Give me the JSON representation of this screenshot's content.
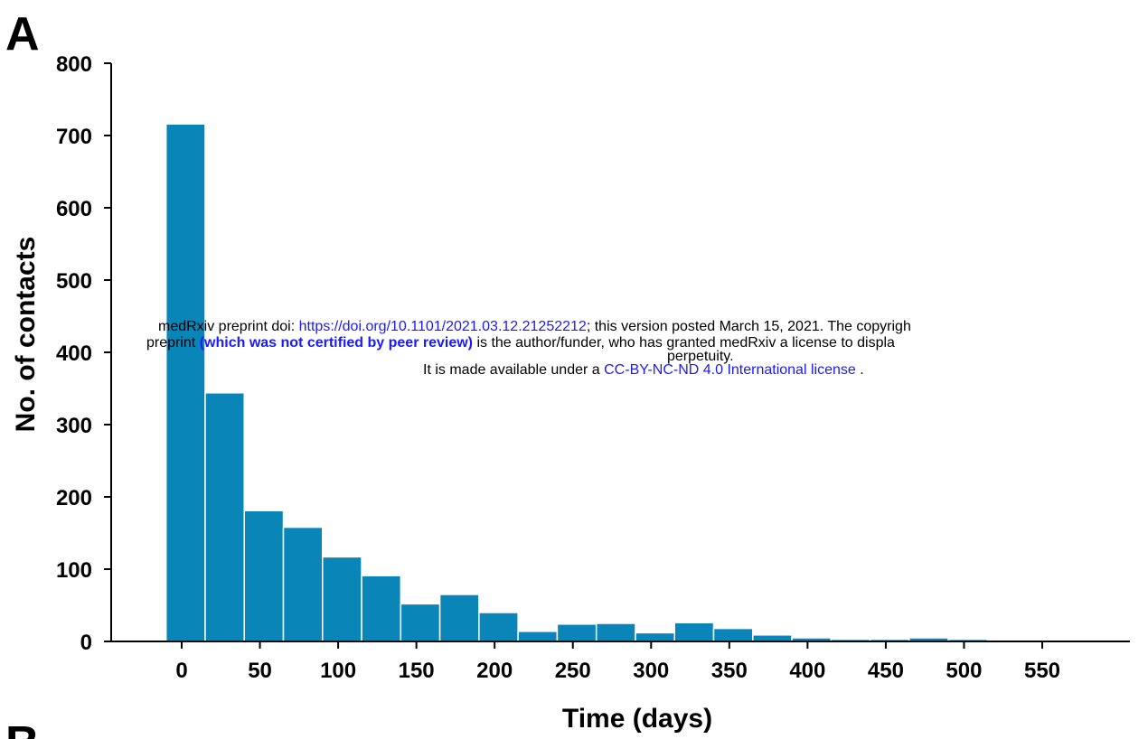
{
  "panel_letter": "A",
  "next_panel_letter": "B",
  "watermark": {
    "line1_prefix": "medRxiv preprint doi: ",
    "line1_link": "https://doi.org/10.1101/2021.03.12.21252212",
    "line1_suffix": "; this version posted March 15, 2021. The copyrigh",
    "line2_prefix": "preprint ",
    "line2_bold": "(which was not certified by peer review)",
    "line2_suffix": " is the author/funder, who has granted medRxiv a license to displa",
    "line3": "perpetuity.",
    "line4_prefix": "It is made available under a ",
    "line4_link": "CC-BY-NC-ND 4.0 International license",
    "line4_suffix": " ."
  },
  "chart_data": {
    "type": "bar",
    "title": "",
    "xlabel": "Time (days)",
    "ylabel": "No. of contacts",
    "bin_width": 25,
    "bin_starts": [
      -10,
      15,
      40,
      65,
      90,
      115,
      140,
      165,
      190,
      215,
      240,
      265,
      290,
      315,
      340,
      365,
      390,
      415,
      440,
      465,
      490,
      515
    ],
    "values": [
      716,
      344,
      181,
      158,
      117,
      91,
      52,
      65,
      40,
      14,
      24,
      25,
      12,
      26,
      18,
      9,
      5,
      3,
      3,
      5,
      3,
      2
    ],
    "xticks": [
      0,
      50,
      100,
      150,
      200,
      250,
      300,
      350,
      400,
      450,
      500,
      550
    ],
    "yticks": [
      0,
      100,
      200,
      300,
      400,
      500,
      600,
      700,
      800
    ],
    "xlim": [
      -20,
      570
    ],
    "ylim": [
      0,
      800
    ],
    "bar_color": "#0a85b8",
    "grid": false
  }
}
